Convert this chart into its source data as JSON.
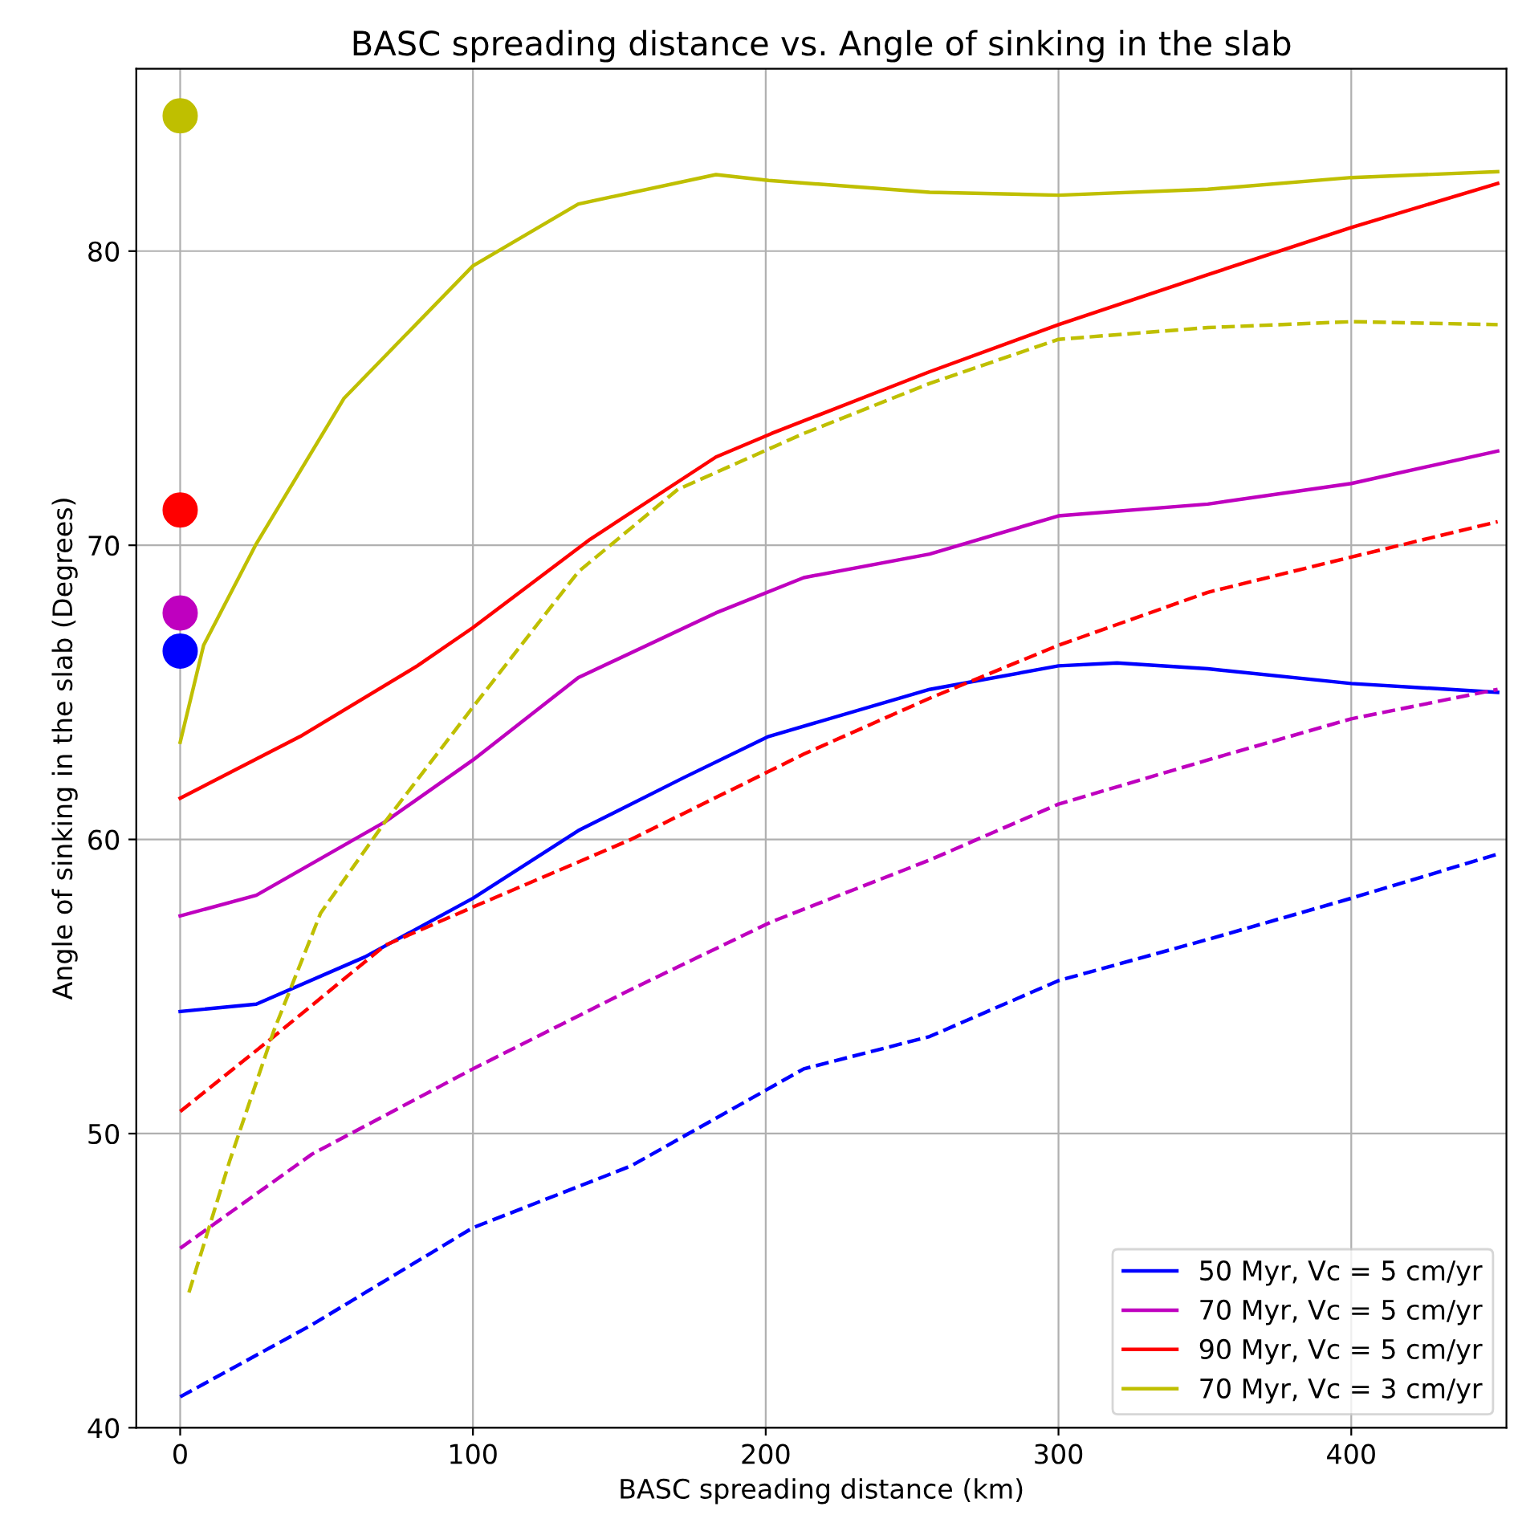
{
  "chart_data": {
    "type": "line",
    "title": "BASC spreading distance vs. Angle of sinking in the slab",
    "xlabel": "BASC spreading distance (km)",
    "ylabel": "Angle of sinking in the slab (Degrees)",
    "xlim": [
      -15,
      453
    ],
    "ylim": [
      40,
      86.2
    ],
    "xticks": [
      0,
      100,
      200,
      300,
      400
    ],
    "yticks": [
      40,
      50,
      60,
      70,
      80
    ],
    "grid": true,
    "legend": "bottom right",
    "series": [
      {
        "name": "50 Myr, Vc = 5 cm/yr",
        "color": "#0000ff",
        "line_style": "solid",
        "x": [
          0,
          26,
          63,
          100,
          136,
          172,
          201,
          256,
          300,
          320,
          351,
          400,
          450
        ],
        "values": [
          54.15,
          54.4,
          56.0,
          58.0,
          60.3,
          62.1,
          63.5,
          65.1,
          65.9,
          66.0,
          65.8,
          65.3,
          65.0
        ]
      },
      {
        "name": "70 Myr, Vc = 5 cm/yr",
        "color": "#bf00bf",
        "line_style": "solid",
        "x": [
          0,
          26,
          70,
          100,
          136,
          183,
          213,
          256,
          300,
          351,
          400,
          450
        ],
        "values": [
          57.4,
          58.1,
          60.6,
          62.7,
          65.5,
          67.7,
          68.9,
          69.7,
          71.0,
          71.4,
          72.1,
          73.2
        ]
      },
      {
        "name": "90 Myr, Vc = 5 cm/yr",
        "color": "#ff0000",
        "line_style": "solid",
        "x": [
          0,
          41,
          81,
          100,
          140,
          183,
          202,
          256,
          300,
          351,
          400,
          450
        ],
        "values": [
          61.4,
          63.5,
          65.9,
          67.2,
          70.2,
          73.0,
          73.8,
          75.9,
          77.5,
          79.2,
          80.8,
          82.3
        ]
      },
      {
        "name": "70 Myr, Vc = 3 cm/yr",
        "color": "#bfbf00",
        "line_style": "solid",
        "x": [
          0,
          8,
          26,
          56,
          100,
          136,
          183,
          201,
          256,
          300,
          351,
          400,
          450
        ],
        "values": [
          63.3,
          66.6,
          70.05,
          75.0,
          79.5,
          81.6,
          82.6,
          82.4,
          82.0,
          81.9,
          82.1,
          82.5,
          82.7
        ]
      },
      {
        "color": "#0000ff",
        "line_style": "dashed",
        "x": [
          0,
          45,
          100,
          154,
          213,
          256,
          300,
          351,
          400,
          450
        ],
        "values": [
          41.05,
          43.5,
          46.8,
          48.9,
          52.2,
          53.3,
          55.2,
          56.6,
          58.0,
          59.5
        ]
      },
      {
        "color": "#bf00bf",
        "line_style": "dashed",
        "x": [
          0,
          45,
          100,
          154,
          202,
          256,
          300,
          351,
          400,
          450
        ],
        "values": [
          46.1,
          49.3,
          52.2,
          54.9,
          57.2,
          59.3,
          61.2,
          62.7,
          64.1,
          65.1
        ]
      },
      {
        "color": "#ff0000",
        "line_style": "dashed",
        "x": [
          0,
          32,
          70,
          100,
          154,
          213,
          256,
          300,
          351,
          400,
          450
        ],
        "values": [
          50.75,
          53.3,
          56.4,
          57.7,
          60.0,
          62.9,
          64.8,
          66.6,
          68.4,
          69.6,
          70.8
        ]
      },
      {
        "color": "#bfbf00",
        "line_style": "dashed",
        "x": [
          3,
          17,
          32,
          48,
          70,
          100,
          136,
          170,
          213,
          256,
          300,
          351,
          400,
          450
        ],
        "values": [
          44.6,
          49.1,
          53.5,
          57.5,
          60.6,
          64.5,
          69.1,
          71.9,
          73.8,
          75.5,
          77.0,
          77.4,
          77.6,
          77.5
        ]
      },
      {
        "type": "scatter",
        "marker": "circle",
        "color": "#0000ff",
        "x": [
          0
        ],
        "values": [
          66.4
        ]
      },
      {
        "type": "scatter",
        "marker": "circle",
        "color": "#bf00bf",
        "x": [
          0
        ],
        "values": [
          67.7
        ]
      },
      {
        "type": "scatter",
        "marker": "circle",
        "color": "#ff0000",
        "x": [
          0
        ],
        "values": [
          71.2
        ]
      },
      {
        "type": "scatter",
        "marker": "circle",
        "color": "#bfbf00",
        "x": [
          0
        ],
        "values": [
          84.6
        ]
      }
    ]
  }
}
